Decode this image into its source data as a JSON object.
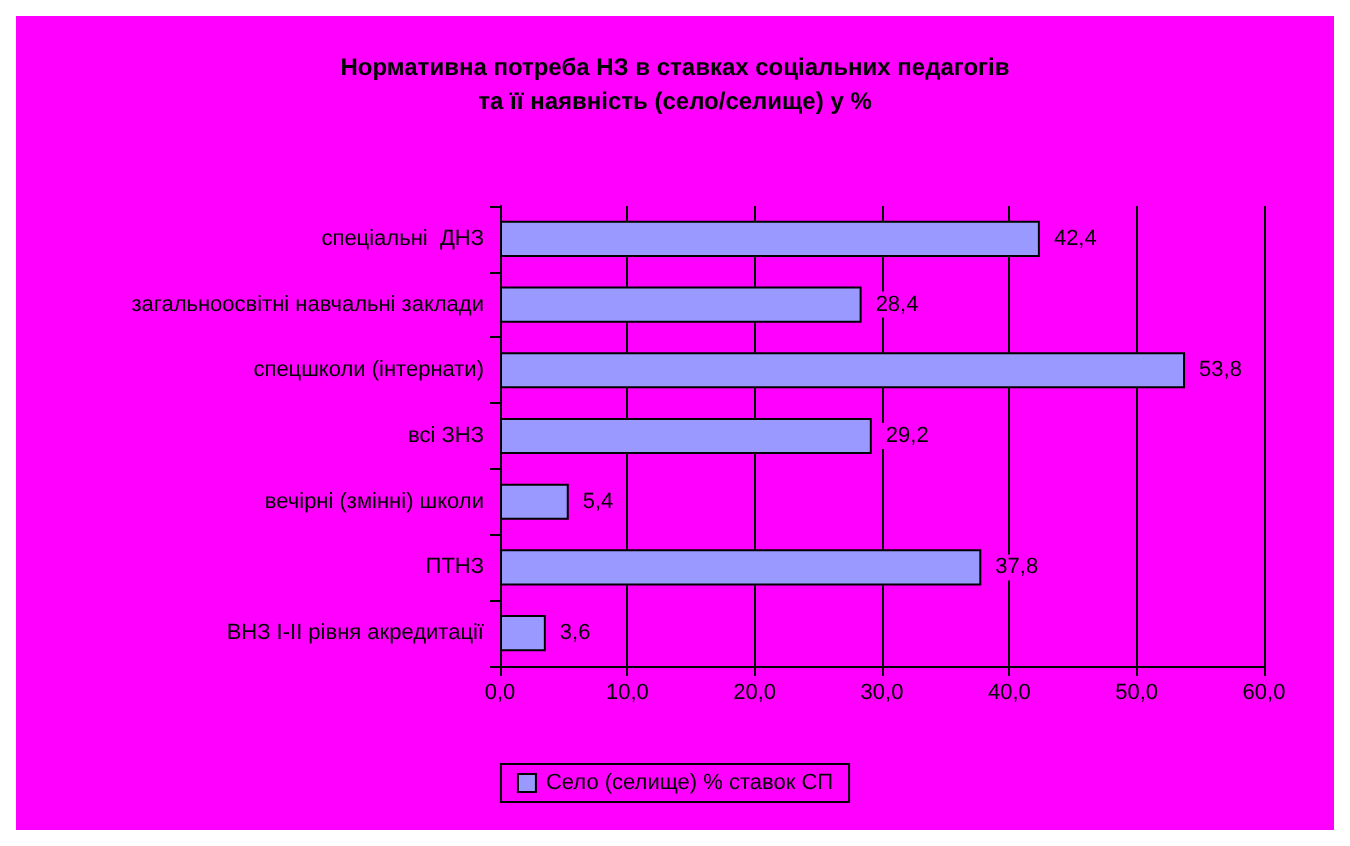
{
  "chart_data": {
    "type": "bar",
    "orientation": "horizontal",
    "title": "Нормативна потреба НЗ в ставках соціальних педагогів\nта її наявність (село/селище) у %",
    "categories": [
      "спеціальні  ДНЗ",
      "загальноосвітні навчальні заклади",
      "спецшколи (інтернати)",
      "всі ЗНЗ",
      "вечірні (змінні) школи",
      "ПТНЗ",
      "ВНЗ І-ІІ рівня акредитації"
    ],
    "series": [
      {
        "name": "Село (селище) % ставок СП",
        "color": "#9999ff",
        "values": [
          42.4,
          28.4,
          53.8,
          29.2,
          5.4,
          37.8,
          3.6
        ],
        "value_labels": [
          "42,4",
          "28,4",
          "53,8",
          "29,2",
          "5,4",
          "37,8",
          "3,6"
        ]
      }
    ],
    "xlim": [
      0,
      60
    ],
    "xticks": [
      {
        "value": 0,
        "label": "0,0"
      },
      {
        "value": 10,
        "label": "10,0"
      },
      {
        "value": 20,
        "label": "20,0"
      },
      {
        "value": 30,
        "label": "30,0"
      },
      {
        "value": 40,
        "label": "40,0"
      },
      {
        "value": 50,
        "label": "50,0"
      },
      {
        "value": 60,
        "label": "60,0"
      }
    ],
    "grid": "x",
    "legend": "bottom"
  }
}
